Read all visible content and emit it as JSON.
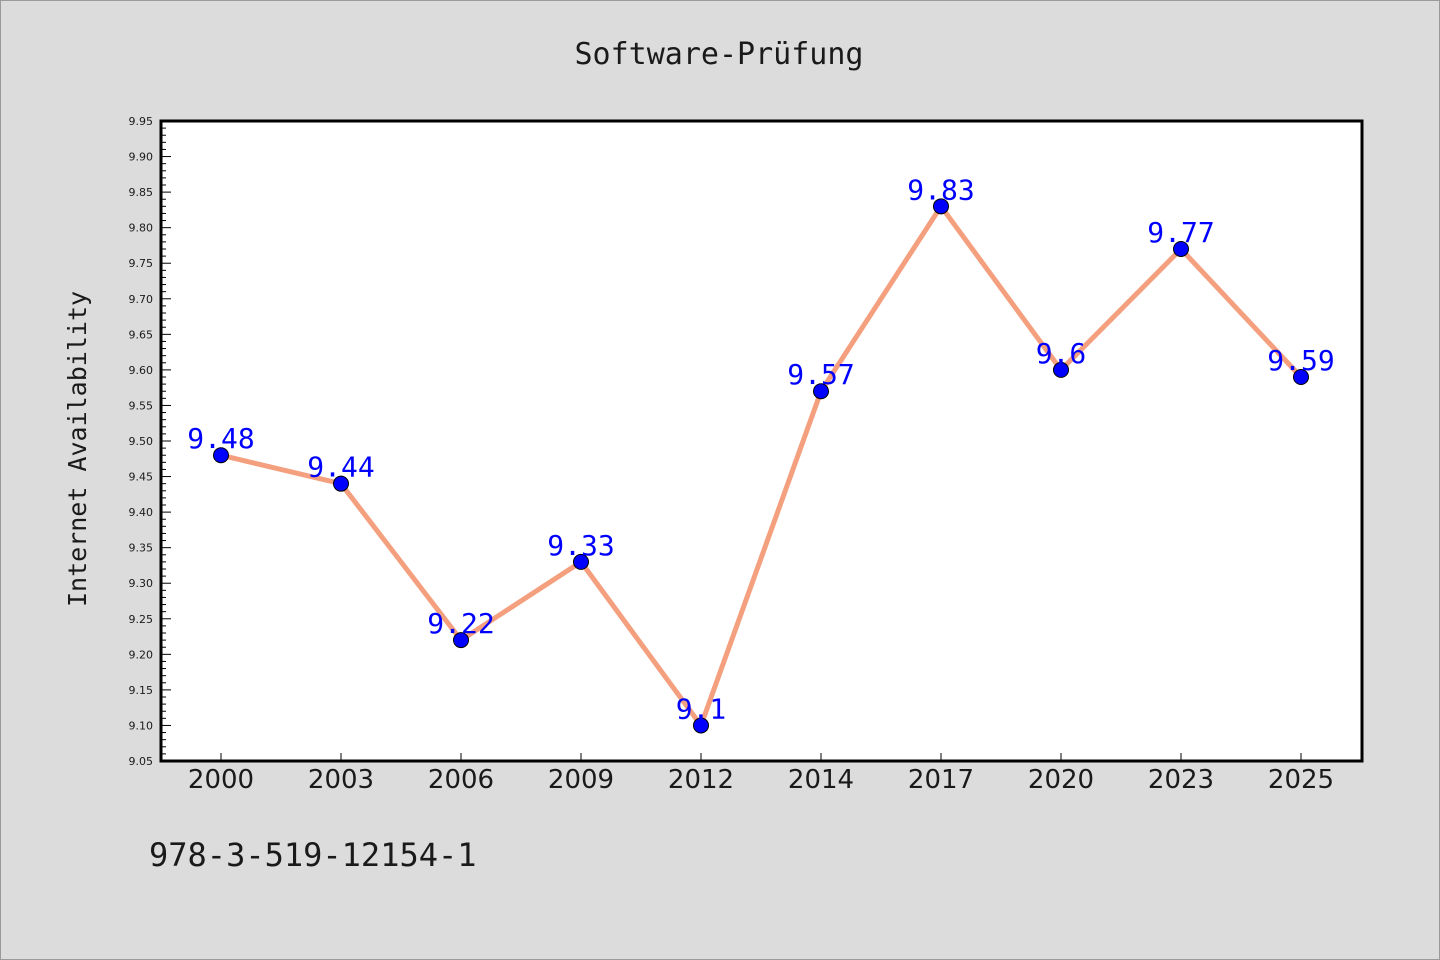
{
  "chart_data": {
    "type": "line",
    "title": "Software-Prüfung",
    "xlabel": "",
    "ylabel": "Internet Availability",
    "categories": [
      "2000",
      "2003",
      "2006",
      "2009",
      "2012",
      "2014",
      "2017",
      "2020",
      "2023",
      "2025"
    ],
    "series": [
      {
        "values": [
          9.48,
          9.44,
          9.22,
          9.33,
          9.1,
          9.57,
          9.83,
          9.6,
          9.77,
          9.59
        ],
        "labels": [
          "9.48",
          "9.44",
          "9.22",
          "9.33",
          "9.1",
          "9.57",
          "9.83",
          "9.6",
          "9.77",
          "9.59"
        ]
      }
    ],
    "ylim": [
      9.05,
      9.95
    ],
    "yticks": [
      "9.05",
      "9.10",
      "9.15",
      "9.20",
      "9.25",
      "9.30",
      "9.35",
      "9.40",
      "9.45",
      "9.50",
      "9.55",
      "9.60",
      "9.65",
      "9.70",
      "9.75",
      "9.80",
      "9.85",
      "9.90",
      "9.95"
    ],
    "grid": false,
    "legend": "none",
    "colors": {
      "line": "#f4a07f",
      "marker": "#0000ff",
      "label": "#0000ff",
      "background": "#dcdcdc",
      "plot_background": "#ffffff"
    }
  },
  "footer": {
    "isbn": "978-3-519-12154-1"
  }
}
